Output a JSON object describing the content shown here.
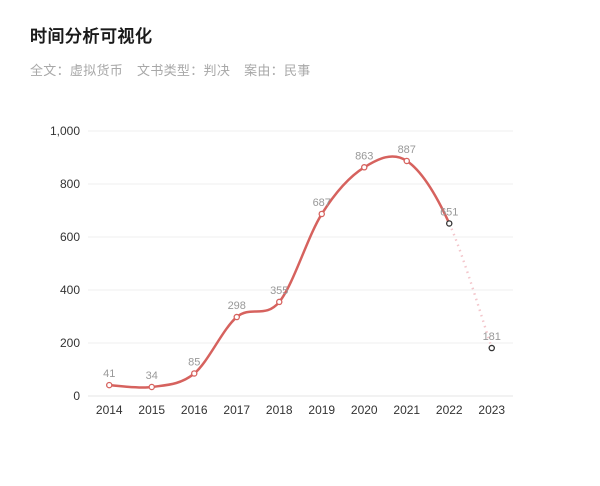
{
  "header": {
    "title": "时间分析可视化",
    "filters": [
      {
        "label": "全文：",
        "value": "虚拟货币"
      },
      {
        "label": "文书类型：",
        "value": "判决"
      },
      {
        "label": "案由：",
        "value": "民事"
      }
    ]
  },
  "chart_data": {
    "type": "line",
    "title": "时间分析可视化",
    "subtitle": "全文：虚拟货币 文书类型：判决 案由：民事",
    "categories": [
      "2014",
      "2015",
      "2016",
      "2017",
      "2018",
      "2019",
      "2020",
      "2021",
      "2022",
      "2023"
    ],
    "values": [
      41,
      34,
      85,
      298,
      355,
      687,
      863,
      887,
      651,
      181
    ],
    "xlabel": "",
    "ylabel": "",
    "ylim": [
      0,
      1000
    ],
    "ytick_values": [
      0,
      200,
      400,
      600,
      800,
      1000
    ],
    "ytick_labels": [
      "0",
      "200",
      "400",
      "600",
      "800",
      "1,000"
    ],
    "grid": true,
    "legend_position": "none",
    "smooth": true,
    "dashed_segment_start_index": 8,
    "dark_marker_indices": [
      8,
      9
    ],
    "colors": {
      "line": "#d6625e",
      "dashed_line": "#f3c6cb",
      "marker_fill": "#ffffff",
      "marker_stroke": "#d6625e",
      "marker_stroke_dark": "#333333",
      "value_label": "#999999",
      "axis_label": "#333333",
      "gridline": "#efefef",
      "axis_line": "#e6e6e6"
    }
  }
}
